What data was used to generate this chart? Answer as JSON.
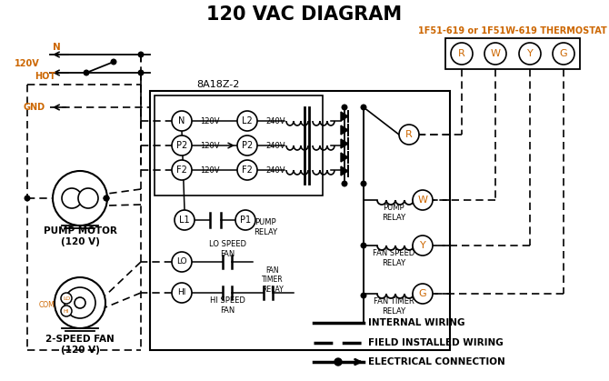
{
  "title": "120 VAC DIAGRAM",
  "bg_color": "#ffffff",
  "orange_color": "#cc6600",
  "thermostat_label": "1F51-619 or 1F51W-619 THERMOSTAT",
  "box8a_label": "8A18Z-2",
  "pump_motor_label": "PUMP MOTOR\n(120 V)",
  "fan_label": "2-SPEED FAN\n(120 V)",
  "legend_internal": "INTERNAL WIRING",
  "legend_field": "FIELD INSTALLED WIRING",
  "legend_elec": "ELECTRICAL CONNECTION"
}
